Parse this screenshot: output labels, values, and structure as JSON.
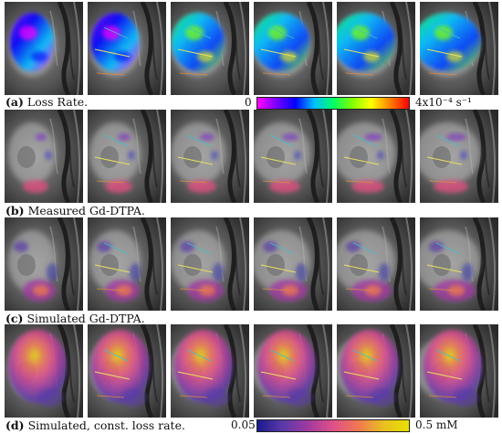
{
  "panels": [
    {
      "label": "(a)",
      "text": "Loss Rate.",
      "overlay": "lossrate"
    },
    {
      "label": "(b)",
      "text": "Measured Gd-DTPA.",
      "overlay": "gd_measured"
    },
    {
      "label": "(c)",
      "text": "Simulated Gd-DTPA.",
      "overlay": "gd_simulated"
    },
    {
      "label": "(d)",
      "text": "Simulated, const. loss rate.",
      "overlay": "gd_const"
    }
  ],
  "colorbars": {
    "loss_rate": {
      "min_label": "0",
      "max_label": "4x10⁻⁴ s⁻¹",
      "colors": [
        "#ff00ff",
        "#7a00ff",
        "#0000ff",
        "#00bfff",
        "#00ff66",
        "#7fff00",
        "#ffff00",
        "#ff8000",
        "#ff0000"
      ]
    },
    "concentration": {
      "min_label": "0.05",
      "max_label": "0.5 mM",
      "colors": [
        "#1a1a8c",
        "#5a3aa8",
        "#a03aa0",
        "#e0508a",
        "#f07850",
        "#e8c020",
        "#e8e000"
      ]
    }
  }
}
